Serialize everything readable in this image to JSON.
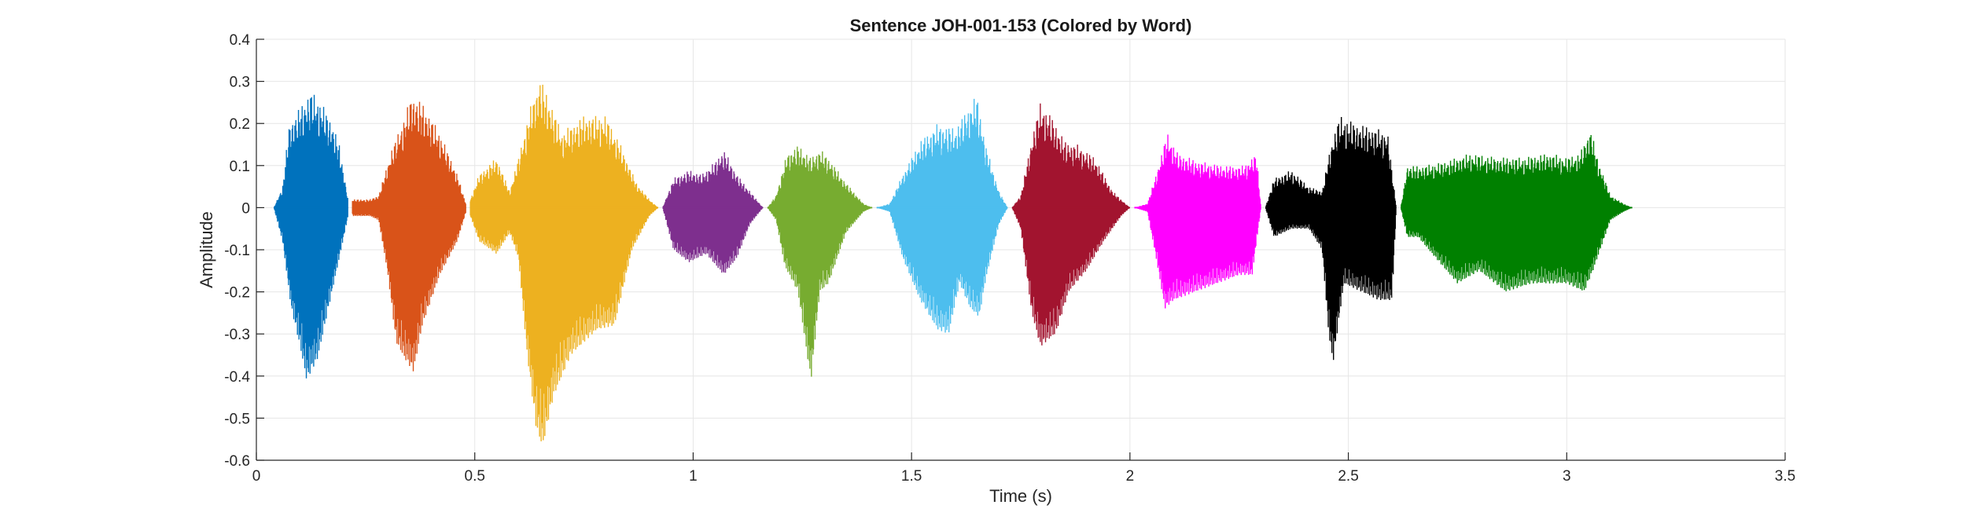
{
  "chart_data": {
    "type": "line",
    "title": "Sentence JOH-001-153 (Colored by Word)",
    "xlabel": "Time (s)",
    "ylabel": "Amplitude",
    "xlim": [
      0,
      3.5
    ],
    "ylim": [
      -0.6,
      0.4
    ],
    "xticks": [
      0,
      0.5,
      1,
      1.5,
      2,
      2.5,
      3,
      3.5
    ],
    "xtick_labels": [
      "0",
      "0.5",
      "1",
      "1.5",
      "2",
      "2.5",
      "3",
      "3.5"
    ],
    "yticks": [
      -0.6,
      -0.5,
      -0.4,
      -0.3,
      -0.2,
      -0.1,
      0,
      0.1,
      0.2,
      0.3,
      0.4
    ],
    "ytick_labels": [
      "-0.6",
      "-0.5",
      "-0.4",
      "-0.3",
      "-0.2",
      "-0.1",
      "0",
      "0.1",
      "0.2",
      "0.3",
      "0.4"
    ],
    "grid": true,
    "colors": {
      "axis": "#262626",
      "grid": "#e6e6e6",
      "background": "#ffffff"
    },
    "series": [
      {
        "color": "#0072BD",
        "start": 0.04,
        "end": 0.21,
        "env_pos": [
          [
            0.04,
            0.0
          ],
          [
            0.06,
            0.05
          ],
          [
            0.075,
            0.2
          ],
          [
            0.1,
            0.24
          ],
          [
            0.125,
            0.28
          ],
          [
            0.15,
            0.25
          ],
          [
            0.175,
            0.2
          ],
          [
            0.19,
            0.15
          ],
          [
            0.21,
            0.02
          ]
        ],
        "env_neg": [
          [
            0.04,
            0.0
          ],
          [
            0.06,
            -0.08
          ],
          [
            0.08,
            -0.24
          ],
          [
            0.1,
            -0.33
          ],
          [
            0.115,
            -0.41
          ],
          [
            0.14,
            -0.36
          ],
          [
            0.165,
            -0.24
          ],
          [
            0.19,
            -0.12
          ],
          [
            0.21,
            -0.02
          ]
        ]
      },
      {
        "color": "#D95319",
        "start": 0.22,
        "end": 0.48,
        "env_pos": [
          [
            0.22,
            0.02
          ],
          [
            0.26,
            0.02
          ],
          [
            0.28,
            0.03
          ],
          [
            0.31,
            0.14
          ],
          [
            0.34,
            0.22
          ],
          [
            0.355,
            0.27
          ],
          [
            0.38,
            0.25
          ],
          [
            0.42,
            0.18
          ],
          [
            0.46,
            0.08
          ],
          [
            0.48,
            0.01
          ]
        ],
        "env_neg": [
          [
            0.22,
            -0.02
          ],
          [
            0.26,
            -0.02
          ],
          [
            0.28,
            -0.03
          ],
          [
            0.3,
            -0.15
          ],
          [
            0.32,
            -0.32
          ],
          [
            0.34,
            -0.36
          ],
          [
            0.36,
            -0.39
          ],
          [
            0.38,
            -0.28
          ],
          [
            0.42,
            -0.16
          ],
          [
            0.46,
            -0.08
          ],
          [
            0.48,
            -0.01
          ]
        ]
      },
      {
        "color": "#EDB120",
        "start": 0.49,
        "end": 0.92,
        "env_pos": [
          [
            0.49,
            0.02
          ],
          [
            0.51,
            0.08
          ],
          [
            0.55,
            0.12
          ],
          [
            0.58,
            0.04
          ],
          [
            0.6,
            0.12
          ],
          [
            0.63,
            0.25
          ],
          [
            0.65,
            0.31
          ],
          [
            0.67,
            0.26
          ],
          [
            0.7,
            0.18
          ],
          [
            0.75,
            0.22
          ],
          [
            0.8,
            0.22
          ],
          [
            0.83,
            0.16
          ],
          [
            0.87,
            0.06
          ],
          [
            0.9,
            0.02
          ],
          [
            0.92,
            0.0
          ]
        ],
        "env_neg": [
          [
            0.49,
            -0.02
          ],
          [
            0.51,
            -0.08
          ],
          [
            0.55,
            -0.11
          ],
          [
            0.58,
            -0.06
          ],
          [
            0.6,
            -0.12
          ],
          [
            0.62,
            -0.35
          ],
          [
            0.64,
            -0.52
          ],
          [
            0.655,
            -0.57
          ],
          [
            0.68,
            -0.45
          ],
          [
            0.72,
            -0.35
          ],
          [
            0.78,
            -0.29
          ],
          [
            0.82,
            -0.28
          ],
          [
            0.86,
            -0.1
          ],
          [
            0.9,
            -0.02
          ],
          [
            0.92,
            0.0
          ]
        ]
      },
      {
        "color": "#7E2F8E",
        "start": 0.93,
        "end": 1.16,
        "env_pos": [
          [
            0.93,
            0.0
          ],
          [
            0.955,
            0.07
          ],
          [
            0.99,
            0.09
          ],
          [
            1.02,
            0.08
          ],
          [
            1.05,
            0.11
          ],
          [
            1.07,
            0.14
          ],
          [
            1.1,
            0.08
          ],
          [
            1.13,
            0.04
          ],
          [
            1.16,
            0.0
          ]
        ],
        "env_neg": [
          [
            0.93,
            0.0
          ],
          [
            0.955,
            -0.1
          ],
          [
            0.99,
            -0.13
          ],
          [
            1.03,
            -0.11
          ],
          [
            1.07,
            -0.16
          ],
          [
            1.1,
            -0.12
          ],
          [
            1.13,
            -0.04
          ],
          [
            1.16,
            0.0
          ]
        ]
      },
      {
        "color": "#77AC30",
        "start": 1.17,
        "end": 1.41,
        "env_pos": [
          [
            1.17,
            0.0
          ],
          [
            1.19,
            0.03
          ],
          [
            1.215,
            0.13
          ],
          [
            1.24,
            0.15
          ],
          [
            1.27,
            0.12
          ],
          [
            1.29,
            0.14
          ],
          [
            1.31,
            0.12
          ],
          [
            1.35,
            0.06
          ],
          [
            1.39,
            0.01
          ],
          [
            1.41,
            0.0
          ]
        ],
        "env_neg": [
          [
            1.17,
            0.0
          ],
          [
            1.19,
            -0.03
          ],
          [
            1.21,
            -0.14
          ],
          [
            1.24,
            -0.2
          ],
          [
            1.265,
            -0.38
          ],
          [
            1.27,
            -0.41
          ],
          [
            1.29,
            -0.2
          ],
          [
            1.31,
            -0.18
          ],
          [
            1.35,
            -0.06
          ],
          [
            1.39,
            -0.01
          ],
          [
            1.41,
            0.0
          ]
        ]
      },
      {
        "color": "#4DBEEE",
        "start": 1.42,
        "end": 1.72,
        "env_pos": [
          [
            1.42,
            0.0
          ],
          [
            1.45,
            0.01
          ],
          [
            1.48,
            0.08
          ],
          [
            1.52,
            0.16
          ],
          [
            1.56,
            0.2
          ],
          [
            1.6,
            0.19
          ],
          [
            1.63,
            0.24
          ],
          [
            1.65,
            0.27
          ],
          [
            1.67,
            0.15
          ],
          [
            1.7,
            0.04
          ],
          [
            1.72,
            0.0
          ]
        ],
        "env_neg": [
          [
            1.42,
            0.0
          ],
          [
            1.45,
            -0.01
          ],
          [
            1.48,
            -0.12
          ],
          [
            1.52,
            -0.22
          ],
          [
            1.56,
            -0.29
          ],
          [
            1.585,
            -0.3
          ],
          [
            1.61,
            -0.18
          ],
          [
            1.635,
            -0.24
          ],
          [
            1.655,
            -0.26
          ],
          [
            1.67,
            -0.17
          ],
          [
            1.7,
            -0.04
          ],
          [
            1.72,
            0.0
          ]
        ]
      },
      {
        "color": "#A2142F",
        "start": 1.73,
        "end": 2.0,
        "env_pos": [
          [
            1.73,
            0.0
          ],
          [
            1.75,
            0.03
          ],
          [
            1.78,
            0.19
          ],
          [
            1.795,
            0.25
          ],
          [
            1.82,
            0.22
          ],
          [
            1.85,
            0.16
          ],
          [
            1.88,
            0.15
          ],
          [
            1.92,
            0.12
          ],
          [
            1.96,
            0.04
          ],
          [
            2.0,
            0.0
          ]
        ],
        "env_neg": [
          [
            1.73,
            0.0
          ],
          [
            1.75,
            -0.05
          ],
          [
            1.775,
            -0.25
          ],
          [
            1.795,
            -0.33
          ],
          [
            1.83,
            -0.3
          ],
          [
            1.86,
            -0.2
          ],
          [
            1.9,
            -0.15
          ],
          [
            1.94,
            -0.08
          ],
          [
            1.98,
            -0.02
          ],
          [
            2.0,
            0.0
          ]
        ]
      },
      {
        "color": "#FF00FF",
        "start": 2.01,
        "end": 2.3,
        "env_pos": [
          [
            2.01,
            0.0
          ],
          [
            2.04,
            0.01
          ],
          [
            2.06,
            0.08
          ],
          [
            2.085,
            0.18
          ],
          [
            2.11,
            0.13
          ],
          [
            2.16,
            0.11
          ],
          [
            2.22,
            0.1
          ],
          [
            2.26,
            0.1
          ],
          [
            2.29,
            0.13
          ],
          [
            2.3,
            0.0
          ]
        ],
        "env_neg": [
          [
            2.01,
            0.0
          ],
          [
            2.04,
            -0.01
          ],
          [
            2.06,
            -0.12
          ],
          [
            2.08,
            -0.24
          ],
          [
            2.1,
            -0.22
          ],
          [
            2.15,
            -0.2
          ],
          [
            2.2,
            -0.18
          ],
          [
            2.25,
            -0.16
          ],
          [
            2.28,
            -0.16
          ],
          [
            2.3,
            0.0
          ]
        ]
      },
      {
        "color": "#000000",
        "start": 2.31,
        "end": 2.61,
        "env_pos": [
          [
            2.31,
            0.0
          ],
          [
            2.33,
            0.07
          ],
          [
            2.37,
            0.09
          ],
          [
            2.41,
            0.05
          ],
          [
            2.44,
            0.04
          ],
          [
            2.46,
            0.15
          ],
          [
            2.48,
            0.22
          ],
          [
            2.52,
            0.2
          ],
          [
            2.56,
            0.19
          ],
          [
            2.59,
            0.18
          ],
          [
            2.61,
            0.0
          ]
        ],
        "env_neg": [
          [
            2.31,
            0.0
          ],
          [
            2.33,
            -0.07
          ],
          [
            2.37,
            -0.05
          ],
          [
            2.41,
            -0.05
          ],
          [
            2.44,
            -0.1
          ],
          [
            2.455,
            -0.3
          ],
          [
            2.465,
            -0.37
          ],
          [
            2.49,
            -0.18
          ],
          [
            2.53,
            -0.2
          ],
          [
            2.57,
            -0.22
          ],
          [
            2.6,
            -0.22
          ],
          [
            2.61,
            0.0
          ]
        ]
      },
      {
        "color": "#008000",
        "start": 2.62,
        "end": 3.15,
        "env_pos": [
          [
            2.62,
            0.0
          ],
          [
            2.635,
            0.1
          ],
          [
            2.67,
            0.1
          ],
          [
            2.72,
            0.11
          ],
          [
            2.78,
            0.13
          ],
          [
            2.84,
            0.12
          ],
          [
            2.9,
            0.12
          ],
          [
            2.96,
            0.13
          ],
          [
            3.0,
            0.12
          ],
          [
            3.03,
            0.13
          ],
          [
            3.055,
            0.19
          ],
          [
            3.07,
            0.12
          ],
          [
            3.1,
            0.03
          ],
          [
            3.13,
            0.01
          ],
          [
            3.15,
            0.0
          ]
        ],
        "env_neg": [
          [
            2.62,
            0.0
          ],
          [
            2.635,
            -0.07
          ],
          [
            2.66,
            -0.07
          ],
          [
            2.7,
            -0.12
          ],
          [
            2.75,
            -0.18
          ],
          [
            2.8,
            -0.15
          ],
          [
            2.86,
            -0.2
          ],
          [
            2.92,
            -0.18
          ],
          [
            2.97,
            -0.18
          ],
          [
            3.0,
            -0.18
          ],
          [
            3.04,
            -0.2
          ],
          [
            3.06,
            -0.15
          ],
          [
            3.1,
            -0.03
          ],
          [
            3.13,
            -0.01
          ],
          [
            3.15,
            0.0
          ]
        ]
      }
    ]
  }
}
